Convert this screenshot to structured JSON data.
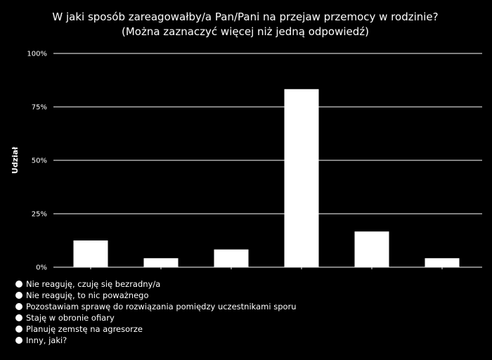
{
  "chart_data": {
    "type": "bar",
    "title": [
      "W jaki sposób zareagowałby/a Pan/Pani na przejaw przemocy w rodzinie?",
      "(Można zaznaczyć więcej niż jedną odpowiedź)"
    ],
    "ylabel": "Udział",
    "xlabel": "",
    "ylim": [
      0,
      100
    ],
    "yticks": [
      "0%",
      "25%",
      "50%",
      "75%",
      "100%"
    ],
    "ytick_values": [
      0,
      25,
      50,
      75,
      100
    ],
    "grid": true,
    "categories": [
      "Nie reaguję, czuję się bezradny/a",
      "Nie reaguję, to nic poważnego",
      "Pozostawiam sprawę do rozwiązania pomiędzy uczestnikami sporu",
      "Staję w obronie ofiary",
      "Planuję zemstę na agresorze",
      "Inny, jaki?"
    ],
    "values": [
      12.5,
      4.2,
      8.3,
      83.3,
      16.7,
      4.2
    ],
    "legend_position": "bottom-left",
    "colors": {
      "background": "#000000",
      "bar": "#ffffff",
      "text": "#ffffff"
    }
  }
}
